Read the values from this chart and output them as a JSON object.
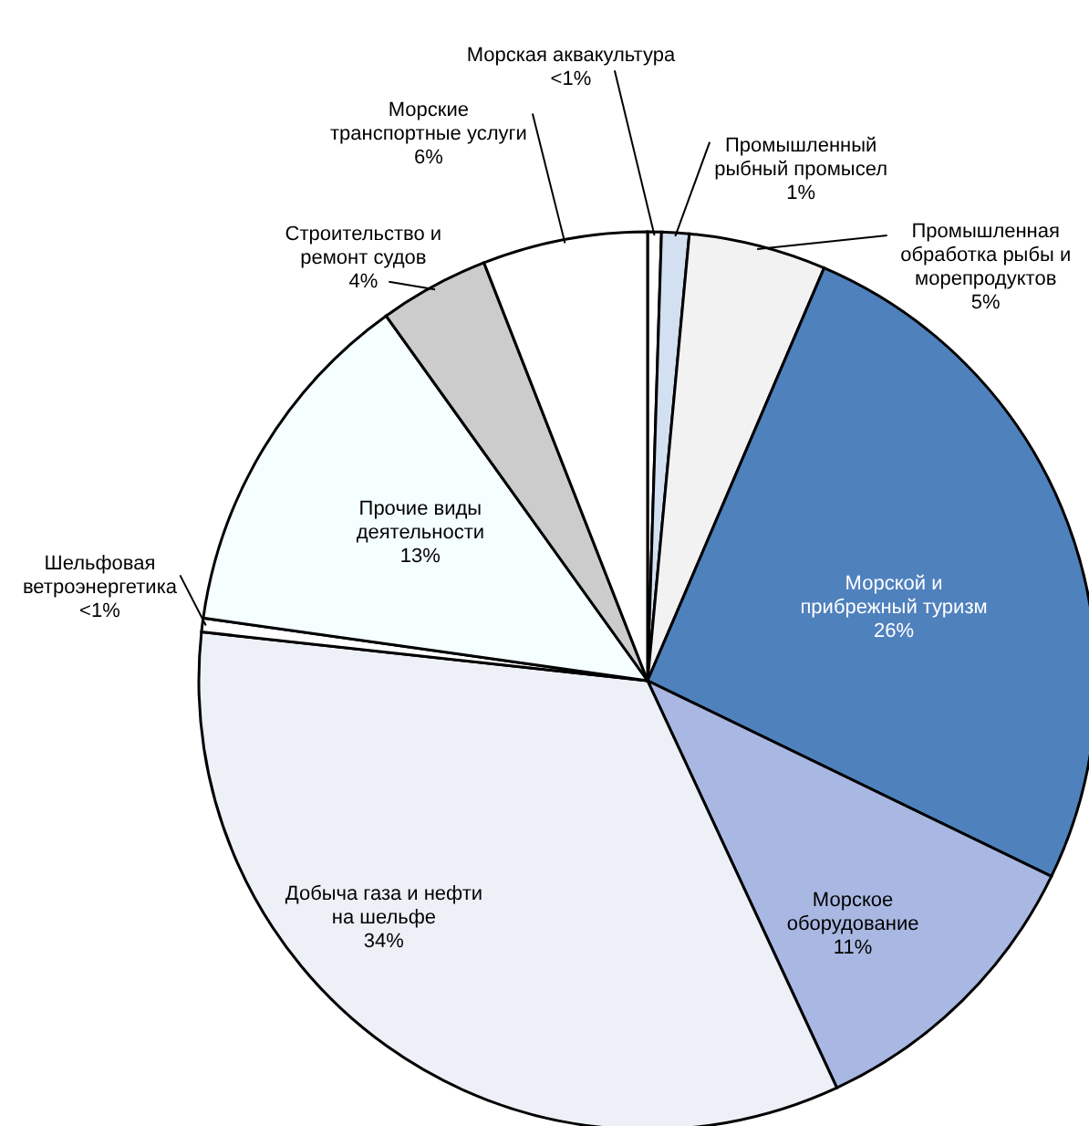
{
  "chart_data": {
    "type": "pie",
    "categories": [
      "Морская аквакультура",
      "Промышленный рыбный промысел",
      "Промышленная обработка рыбы и морепродуктов",
      "Морской и прибрежный туризм",
      "Морское оборудование",
      "Добыча газа и нефти на шельфе",
      "Шельфовая ветроэнергетика",
      "Прочие виды деятельности",
      "Строительство и ремонт судов",
      "Морские транспортные услуги"
    ],
    "values": [
      0.5,
      1,
      5,
      26,
      11,
      34,
      0.5,
      13,
      4,
      6
    ],
    "value_labels": [
      "<1%",
      "1%",
      "5%",
      "26%",
      "11%",
      "34%",
      "<1%",
      "13%",
      "4%",
      "6%"
    ],
    "colors": [
      "#ffffff",
      "#d3e0f1",
      "#f2f2f2",
      "#4f81bd",
      "#a9b8e2",
      "#eef0f8",
      "#ffffff",
      "#f5ffff",
      "#cccccc",
      "#ffffff"
    ]
  }
}
